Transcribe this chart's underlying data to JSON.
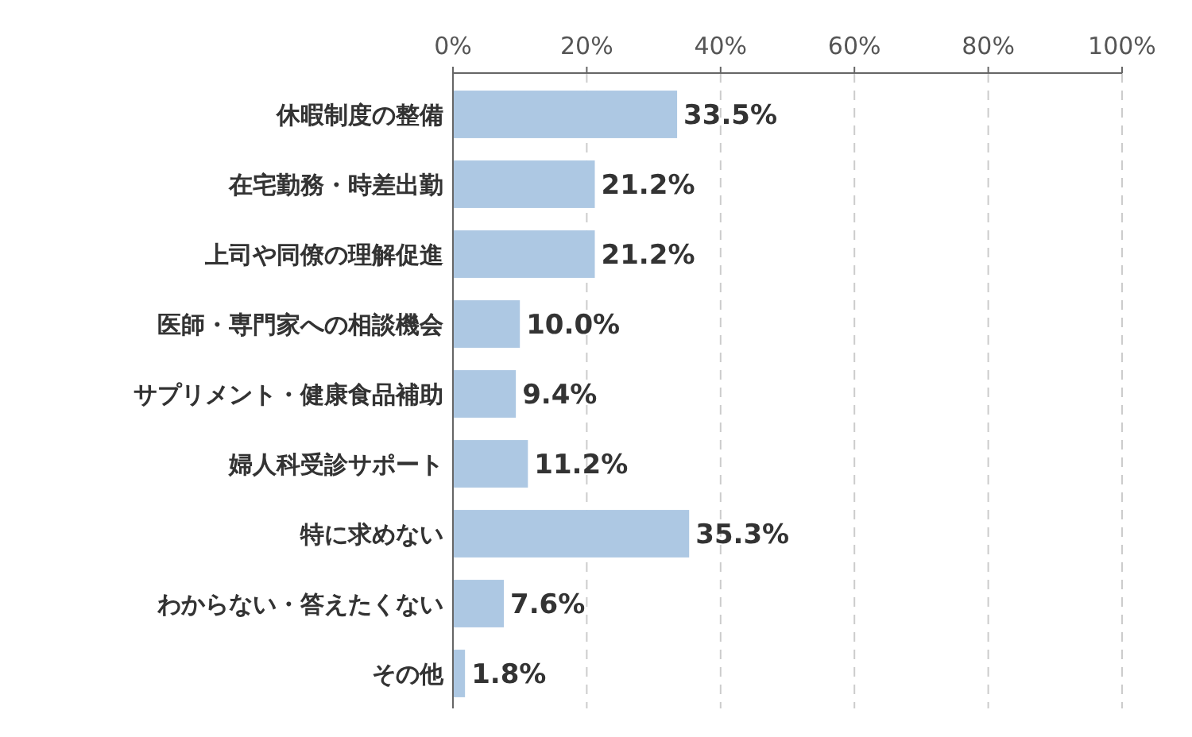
{
  "chart_data": {
    "type": "bar",
    "orientation": "horizontal",
    "categories": [
      "休暇制度の整備",
      "在宅勤務・時差出勤",
      "上司や同僚の理解促進",
      "医師・専門家への相談機会",
      "サプリメント・健康食品補助",
      "婦人科受診サポート",
      "特に求めない",
      "わからない・答えたくない",
      "その他"
    ],
    "values": [
      33.5,
      21.2,
      21.2,
      10.0,
      9.4,
      11.2,
      35.3,
      7.6,
      1.8
    ],
    "value_labels": [
      "33.5%",
      "21.2%",
      "21.2%",
      "10.0%",
      "9.4%",
      "11.2%",
      "35.3%",
      "7.6%",
      "1.8%"
    ],
    "color": "#adc8e3",
    "xlim": [
      0,
      100
    ],
    "xticks": [
      {
        "value": 0,
        "label": "0%"
      },
      {
        "value": 20,
        "label": "20%"
      },
      {
        "value": 40,
        "label": "40%"
      },
      {
        "value": 60,
        "label": "60%"
      },
      {
        "value": 80,
        "label": "80%"
      },
      {
        "value": 100,
        "label": "100%"
      }
    ],
    "grid": "x"
  }
}
